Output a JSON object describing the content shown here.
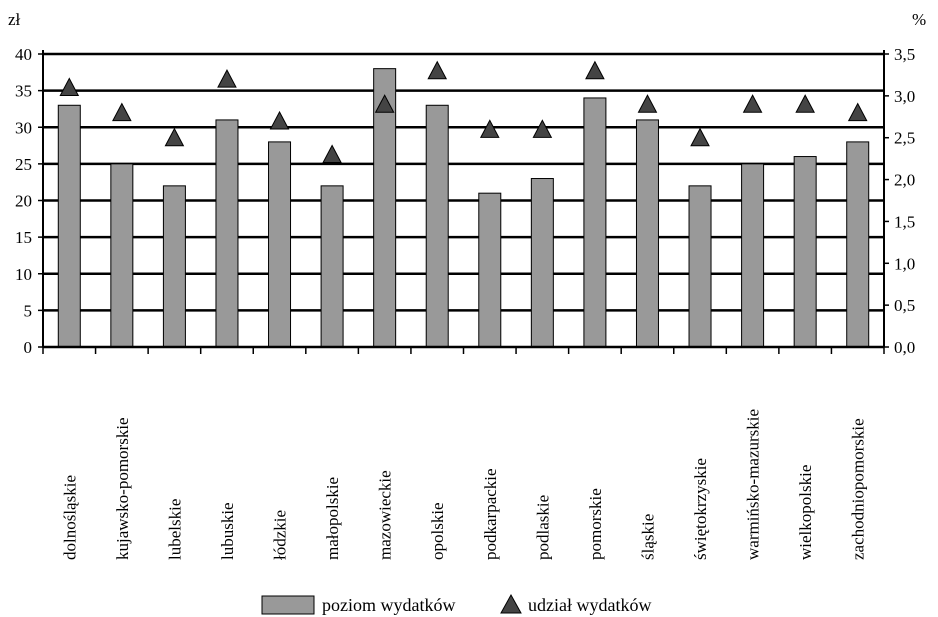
{
  "chart_data": {
    "type": "bar",
    "categories": [
      "dolnośląskie",
      "kujawsko-pomorskie",
      "lubelskie",
      "lubuskie",
      "łódzkie",
      "małopolskie",
      "mazowieckie",
      "opolskie",
      "podkarpackie",
      "podlaskie",
      "pomorskie",
      "śląskie",
      "świętokrzyskie",
      "warmińsko-mazurskie",
      "wielkopolskie",
      "zachodniopomorskie"
    ],
    "series": [
      {
        "name": "poziom wydatków",
        "type": "bar",
        "axis": "left",
        "color": "#999999",
        "values": [
          33,
          25,
          22,
          31,
          28,
          22,
          38,
          33,
          21,
          23,
          34,
          31,
          22,
          25,
          26,
          28
        ]
      },
      {
        "name": "udział wydatków",
        "type": "marker-triangle",
        "axis": "right",
        "color": "#444444",
        "values": [
          3.1,
          2.8,
          2.5,
          3.2,
          2.7,
          2.3,
          2.9,
          3.3,
          2.6,
          2.6,
          3.3,
          2.9,
          2.5,
          2.9,
          2.9,
          2.8
        ]
      }
    ],
    "left_axis": {
      "unit": "zł",
      "ylim": [
        0,
        40
      ],
      "ticks": [
        "0",
        "5",
        "10",
        "15",
        "20",
        "25",
        "30",
        "35",
        "40"
      ]
    },
    "right_axis": {
      "unit": "%",
      "ylim": [
        0,
        3.5
      ],
      "ticks": [
        "0,0",
        "0,5",
        "1,0",
        "1,5",
        "2,0",
        "2,5",
        "3,0",
        "3,5"
      ]
    },
    "grid": true,
    "legend": {
      "position": "bottom-center",
      "items": [
        {
          "label": "poziom wydatków",
          "symbol": "rect"
        },
        {
          "label": "udział wydatków",
          "symbol": "triangle"
        }
      ]
    }
  }
}
